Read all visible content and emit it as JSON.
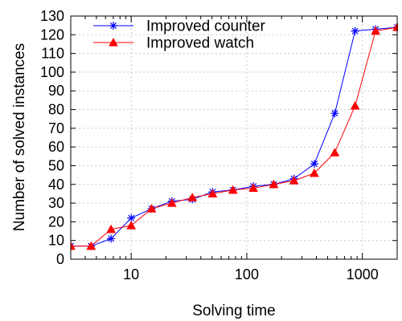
{
  "chart_data": {
    "type": "line",
    "xscale": "log",
    "xlim": [
      3,
      2000
    ],
    "ylim": [
      0,
      130
    ],
    "xlabel": "Solving time",
    "ylabel": "Number of solved instances",
    "grid": true,
    "legend_position": "top-left",
    "x_ticks": [
      {
        "value": 10,
        "label": "10"
      },
      {
        "value": 100,
        "label": "100"
      },
      {
        "value": 1000,
        "label": "1000"
      }
    ],
    "y_ticks": [
      0,
      10,
      20,
      30,
      40,
      50,
      60,
      70,
      80,
      90,
      100,
      110,
      120,
      130
    ],
    "series": [
      {
        "name": "Improved counter",
        "color": "#0000ff",
        "marker": "asterisk",
        "x": [
          3,
          4.5,
          6.7,
          10,
          15,
          22.5,
          33.8,
          50.6,
          75.9,
          114,
          171,
          256,
          384,
          577,
          865,
          1300,
          2000
        ],
        "y": [
          7,
          7,
          11,
          22,
          27,
          31,
          32,
          36,
          37,
          39,
          40,
          43,
          51,
          78,
          122,
          123,
          124
        ]
      },
      {
        "name": "Improved watch",
        "color": "#ff0000",
        "marker": "triangle",
        "x": [
          3,
          4.5,
          6.7,
          10,
          15,
          22.5,
          33.8,
          50.6,
          75.9,
          114,
          171,
          256,
          384,
          577,
          865,
          1300,
          2000
        ],
        "y": [
          7,
          7,
          16,
          18,
          27,
          30,
          33,
          35,
          37,
          38,
          40,
          42,
          46,
          57,
          82,
          122,
          124
        ]
      }
    ]
  }
}
